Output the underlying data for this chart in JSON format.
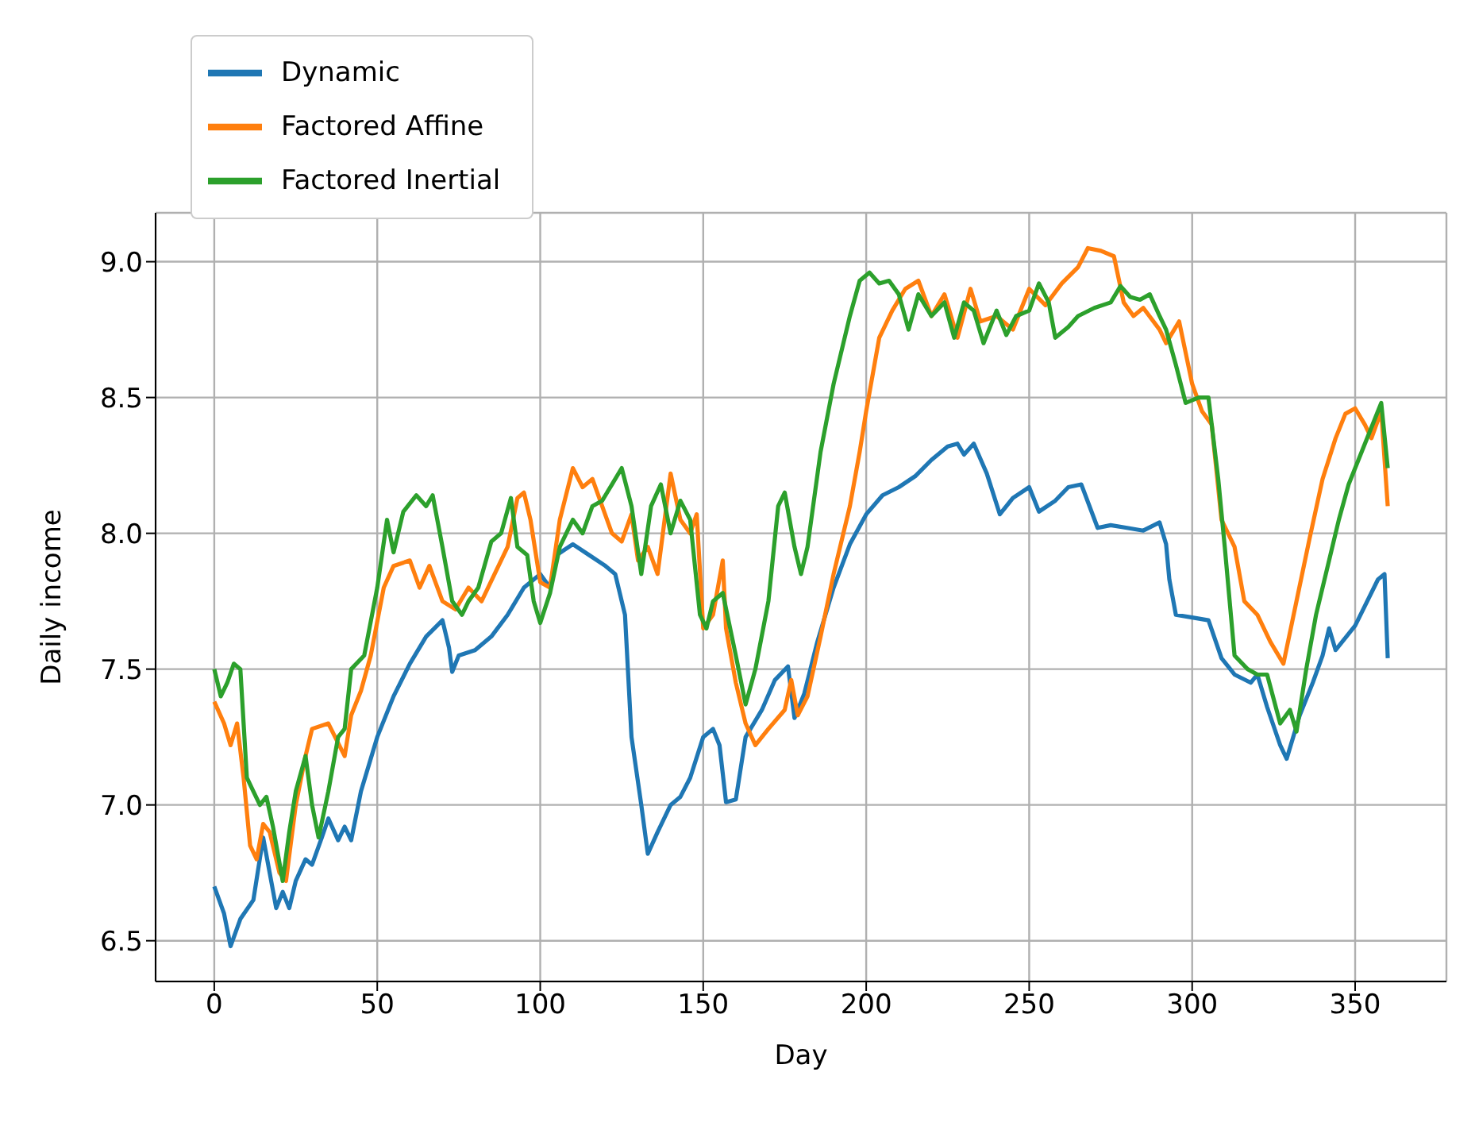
{
  "chart_data": {
    "type": "line",
    "xlabel": "Day",
    "ylabel": "Daily income",
    "xlim": [
      -18,
      378
    ],
    "xticks": [
      0,
      50,
      100,
      150,
      200,
      250,
      300,
      350
    ],
    "ylim": [
      6.35,
      9.18
    ],
    "yticks": [
      {
        "value": 6.5,
        "label": "6.5"
      },
      {
        "value": 7,
        "label": "7.0"
      },
      {
        "value": 7.5,
        "label": "7.5"
      },
      {
        "value": 8,
        "label": "8.0"
      },
      {
        "value": 8.5,
        "label": "8.5"
      },
      {
        "value": 9,
        "label": "9.0"
      }
    ],
    "grid": true,
    "legend": "top left",
    "marker": "none",
    "line_style": "solid",
    "series": [
      {
        "name": "Dynamic",
        "color": "#1f77b4",
        "x": [
          0,
          3,
          5,
          8,
          12,
          15,
          17,
          19,
          21,
          23,
          25,
          28,
          30,
          33,
          35,
          38,
          40,
          42,
          45,
          50,
          55,
          60,
          65,
          70,
          72,
          73,
          75,
          80,
          85,
          90,
          95,
          100,
          103,
          105,
          110,
          115,
          120,
          123,
          126,
          128,
          131,
          133,
          136,
          140,
          143,
          146,
          150,
          153,
          155,
          157,
          160,
          163,
          168,
          172,
          176,
          178,
          181,
          185,
          190,
          195,
          200,
          205,
          210,
          215,
          220,
          225,
          228,
          230,
          233,
          237,
          241,
          245,
          250,
          253,
          258,
          262,
          266,
          271,
          275,
          280,
          285,
          290,
          292,
          293,
          295,
          300,
          305,
          309,
          313,
          318,
          320,
          323,
          327,
          329,
          333,
          337,
          340,
          342,
          344,
          350,
          357,
          359,
          360
        ],
        "values": [
          6.7,
          6.6,
          6.48,
          6.58,
          6.65,
          6.88,
          6.75,
          6.62,
          6.68,
          6.62,
          6.72,
          6.8,
          6.78,
          6.88,
          6.95,
          6.87,
          6.92,
          6.87,
          7.05,
          7.25,
          7.4,
          7.52,
          7.62,
          7.68,
          7.58,
          7.49,
          7.55,
          7.57,
          7.62,
          7.7,
          7.8,
          7.85,
          7.8,
          7.92,
          7.96,
          7.92,
          7.88,
          7.85,
          7.7,
          7.25,
          7.0,
          6.82,
          6.9,
          7.0,
          7.03,
          7.1,
          7.25,
          7.28,
          7.22,
          7.01,
          7.02,
          7.25,
          7.35,
          7.46,
          7.51,
          7.32,
          7.41,
          7.6,
          7.8,
          7.96,
          8.07,
          8.14,
          8.17,
          8.21,
          8.27,
          8.32,
          8.33,
          8.29,
          8.33,
          8.22,
          8.07,
          8.13,
          8.17,
          8.08,
          8.12,
          8.17,
          8.18,
          8.02,
          8.03,
          8.02,
          8.01,
          8.04,
          7.96,
          7.83,
          7.7,
          7.69,
          7.68,
          7.54,
          7.48,
          7.45,
          7.48,
          7.36,
          7.22,
          7.17,
          7.33,
          7.45,
          7.55,
          7.65,
          7.57,
          7.66,
          7.83,
          7.85,
          7.54
        ]
      },
      {
        "name": "Factored Affine",
        "color": "#ff7f0e",
        "x": [
          0,
          3,
          5,
          7,
          9,
          11,
          13,
          15,
          17,
          20,
          22,
          25,
          28,
          30,
          35,
          40,
          42,
          45,
          48,
          52,
          55,
          60,
          63,
          66,
          70,
          74,
          78,
          82,
          86,
          90,
          93,
          95,
          97,
          100,
          103,
          106,
          110,
          113,
          116,
          119,
          122,
          125,
          128,
          130,
          133,
          136,
          140,
          143,
          146,
          148,
          150,
          153,
          156,
          157,
          160,
          163,
          166,
          170,
          175,
          177,
          179,
          182,
          186,
          190,
          195,
          198,
          200,
          204,
          208,
          212,
          216,
          220,
          224,
          228,
          232,
          235,
          240,
          245,
          250,
          255,
          260,
          265,
          268,
          272,
          276,
          279,
          282,
          285,
          290,
          292,
          296,
          300,
          303,
          306,
          309,
          313,
          316,
          320,
          324,
          328,
          332,
          336,
          340,
          344,
          347,
          350,
          353,
          355,
          358,
          360
        ],
        "values": [
          7.38,
          7.3,
          7.22,
          7.3,
          7.1,
          6.85,
          6.8,
          6.93,
          6.9,
          6.75,
          6.72,
          7.0,
          7.18,
          7.28,
          7.3,
          7.18,
          7.33,
          7.42,
          7.55,
          7.8,
          7.88,
          7.9,
          7.8,
          7.88,
          7.75,
          7.72,
          7.8,
          7.75,
          7.85,
          7.95,
          8.13,
          8.15,
          8.05,
          7.82,
          7.8,
          8.05,
          8.24,
          8.17,
          8.2,
          8.1,
          8.0,
          7.97,
          8.07,
          7.9,
          7.95,
          7.85,
          8.22,
          8.05,
          8.0,
          8.07,
          7.65,
          7.7,
          7.9,
          7.65,
          7.45,
          7.3,
          7.22,
          7.28,
          7.35,
          7.46,
          7.33,
          7.4,
          7.62,
          7.85,
          8.1,
          8.3,
          8.45,
          8.72,
          8.82,
          8.9,
          8.93,
          8.8,
          8.88,
          8.72,
          8.9,
          8.78,
          8.8,
          8.75,
          8.9,
          8.84,
          8.92,
          8.98,
          9.05,
          9.04,
          9.02,
          8.85,
          8.8,
          8.83,
          8.75,
          8.7,
          8.78,
          8.55,
          8.45,
          8.4,
          8.05,
          7.95,
          7.75,
          7.7,
          7.6,
          7.52,
          7.75,
          7.98,
          8.2,
          8.35,
          8.44,
          8.46,
          8.4,
          8.35,
          8.45,
          8.1
        ]
      },
      {
        "name": "Factored Inertial",
        "color": "#2ca02c",
        "x": [
          0,
          2,
          4,
          6,
          8,
          10,
          12,
          14,
          16,
          18,
          21,
          23,
          25,
          28,
          30,
          32,
          35,
          38,
          40,
          42,
          46,
          50,
          53,
          55,
          58,
          62,
          65,
          67,
          70,
          73,
          76,
          78,
          81,
          85,
          88,
          91,
          93,
          96,
          98,
          100,
          103,
          106,
          110,
          113,
          116,
          119,
          122,
          125,
          128,
          131,
          134,
          137,
          140,
          143,
          146,
          149,
          151,
          153,
          156,
          160,
          163,
          166,
          170,
          173,
          175,
          178,
          180,
          182,
          186,
          190,
          195,
          198,
          201,
          204,
          207,
          210,
          213,
          216,
          220,
          224,
          227,
          230,
          233,
          236,
          240,
          243,
          246,
          250,
          253,
          256,
          258,
          262,
          265,
          270,
          275,
          278,
          281,
          284,
          287,
          290,
          292,
          295,
          298,
          302,
          305,
          308,
          310,
          313,
          317,
          320,
          323,
          327,
          330,
          332,
          335,
          338,
          342,
          345,
          348,
          352,
          356,
          358,
          360
        ],
        "values": [
          7.5,
          7.4,
          7.45,
          7.52,
          7.5,
          7.1,
          7.05,
          7.0,
          7.03,
          6.92,
          6.72,
          6.9,
          7.05,
          7.18,
          7.0,
          6.88,
          7.05,
          7.25,
          7.28,
          7.5,
          7.55,
          7.8,
          8.05,
          7.93,
          8.08,
          8.14,
          8.1,
          8.14,
          7.95,
          7.75,
          7.7,
          7.75,
          7.8,
          7.97,
          8.0,
          8.13,
          7.95,
          7.92,
          7.75,
          7.67,
          7.78,
          7.95,
          8.05,
          8.0,
          8.1,
          8.12,
          8.18,
          8.24,
          8.1,
          7.85,
          8.1,
          8.18,
          8.0,
          8.12,
          8.05,
          7.7,
          7.65,
          7.75,
          7.78,
          7.55,
          7.37,
          7.5,
          7.75,
          8.1,
          8.15,
          7.95,
          7.85,
          7.95,
          8.3,
          8.55,
          8.8,
          8.93,
          8.96,
          8.92,
          8.93,
          8.88,
          8.75,
          8.88,
          8.8,
          8.85,
          8.72,
          8.85,
          8.82,
          8.7,
          8.82,
          8.73,
          8.8,
          8.82,
          8.92,
          8.85,
          8.72,
          8.76,
          8.8,
          8.83,
          8.85,
          8.91,
          8.87,
          8.86,
          8.88,
          8.8,
          8.75,
          8.62,
          8.48,
          8.5,
          8.5,
          8.2,
          7.95,
          7.55,
          7.5,
          7.48,
          7.48,
          7.3,
          7.35,
          7.27,
          7.5,
          7.7,
          7.9,
          8.05,
          8.18,
          8.3,
          8.42,
          8.48,
          8.24
        ]
      }
    ]
  }
}
